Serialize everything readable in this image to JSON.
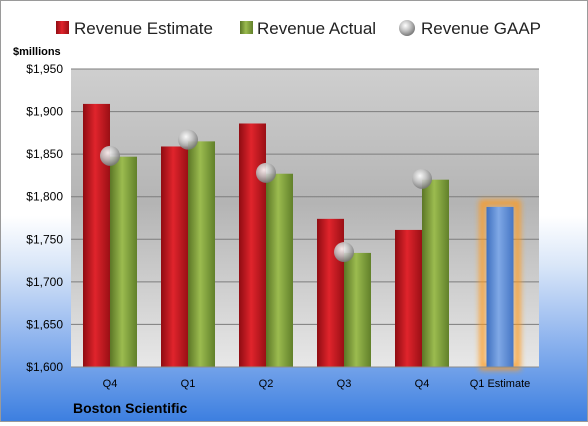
{
  "chart_data": {
    "type": "bar",
    "title": "",
    "ylabel": "$millions",
    "xlabel": "",
    "ylim": [
      1600,
      1950
    ],
    "yticks": [
      "$1,600",
      "$1,650",
      "$1,700",
      "$1,750",
      "$1,800",
      "$1,850",
      "$1,900",
      "$1,950"
    ],
    "ytick_values": [
      1600,
      1650,
      1700,
      1750,
      1800,
      1850,
      1900,
      1950
    ],
    "categories": [
      "Q4",
      "Q1",
      "Q2",
      "Q3",
      "Q4",
      "Q1 Estimate"
    ],
    "grid": true,
    "legend_position": "top",
    "footer": "Boston Scientific",
    "series": [
      {
        "name": "Revenue Estimate",
        "kind": "bar",
        "color": "#c0141d",
        "values": [
          1909,
          1859,
          1886,
          1774,
          1761,
          null
        ]
      },
      {
        "name": "Revenue Actual",
        "kind": "bar",
        "color": "#7a9a35",
        "values": [
          1847,
          1865,
          1827,
          1734,
          1820,
          null
        ]
      },
      {
        "name": "Revenue GAAP",
        "kind": "marker",
        "color": "#b8b8b8",
        "values": [
          1848,
          1867,
          1828,
          1735,
          1821,
          null
        ]
      },
      {
        "name": "",
        "kind": "highlight-bar",
        "color": "#5d8fd8",
        "values": [
          null,
          null,
          null,
          null,
          null,
          1788
        ]
      }
    ]
  }
}
